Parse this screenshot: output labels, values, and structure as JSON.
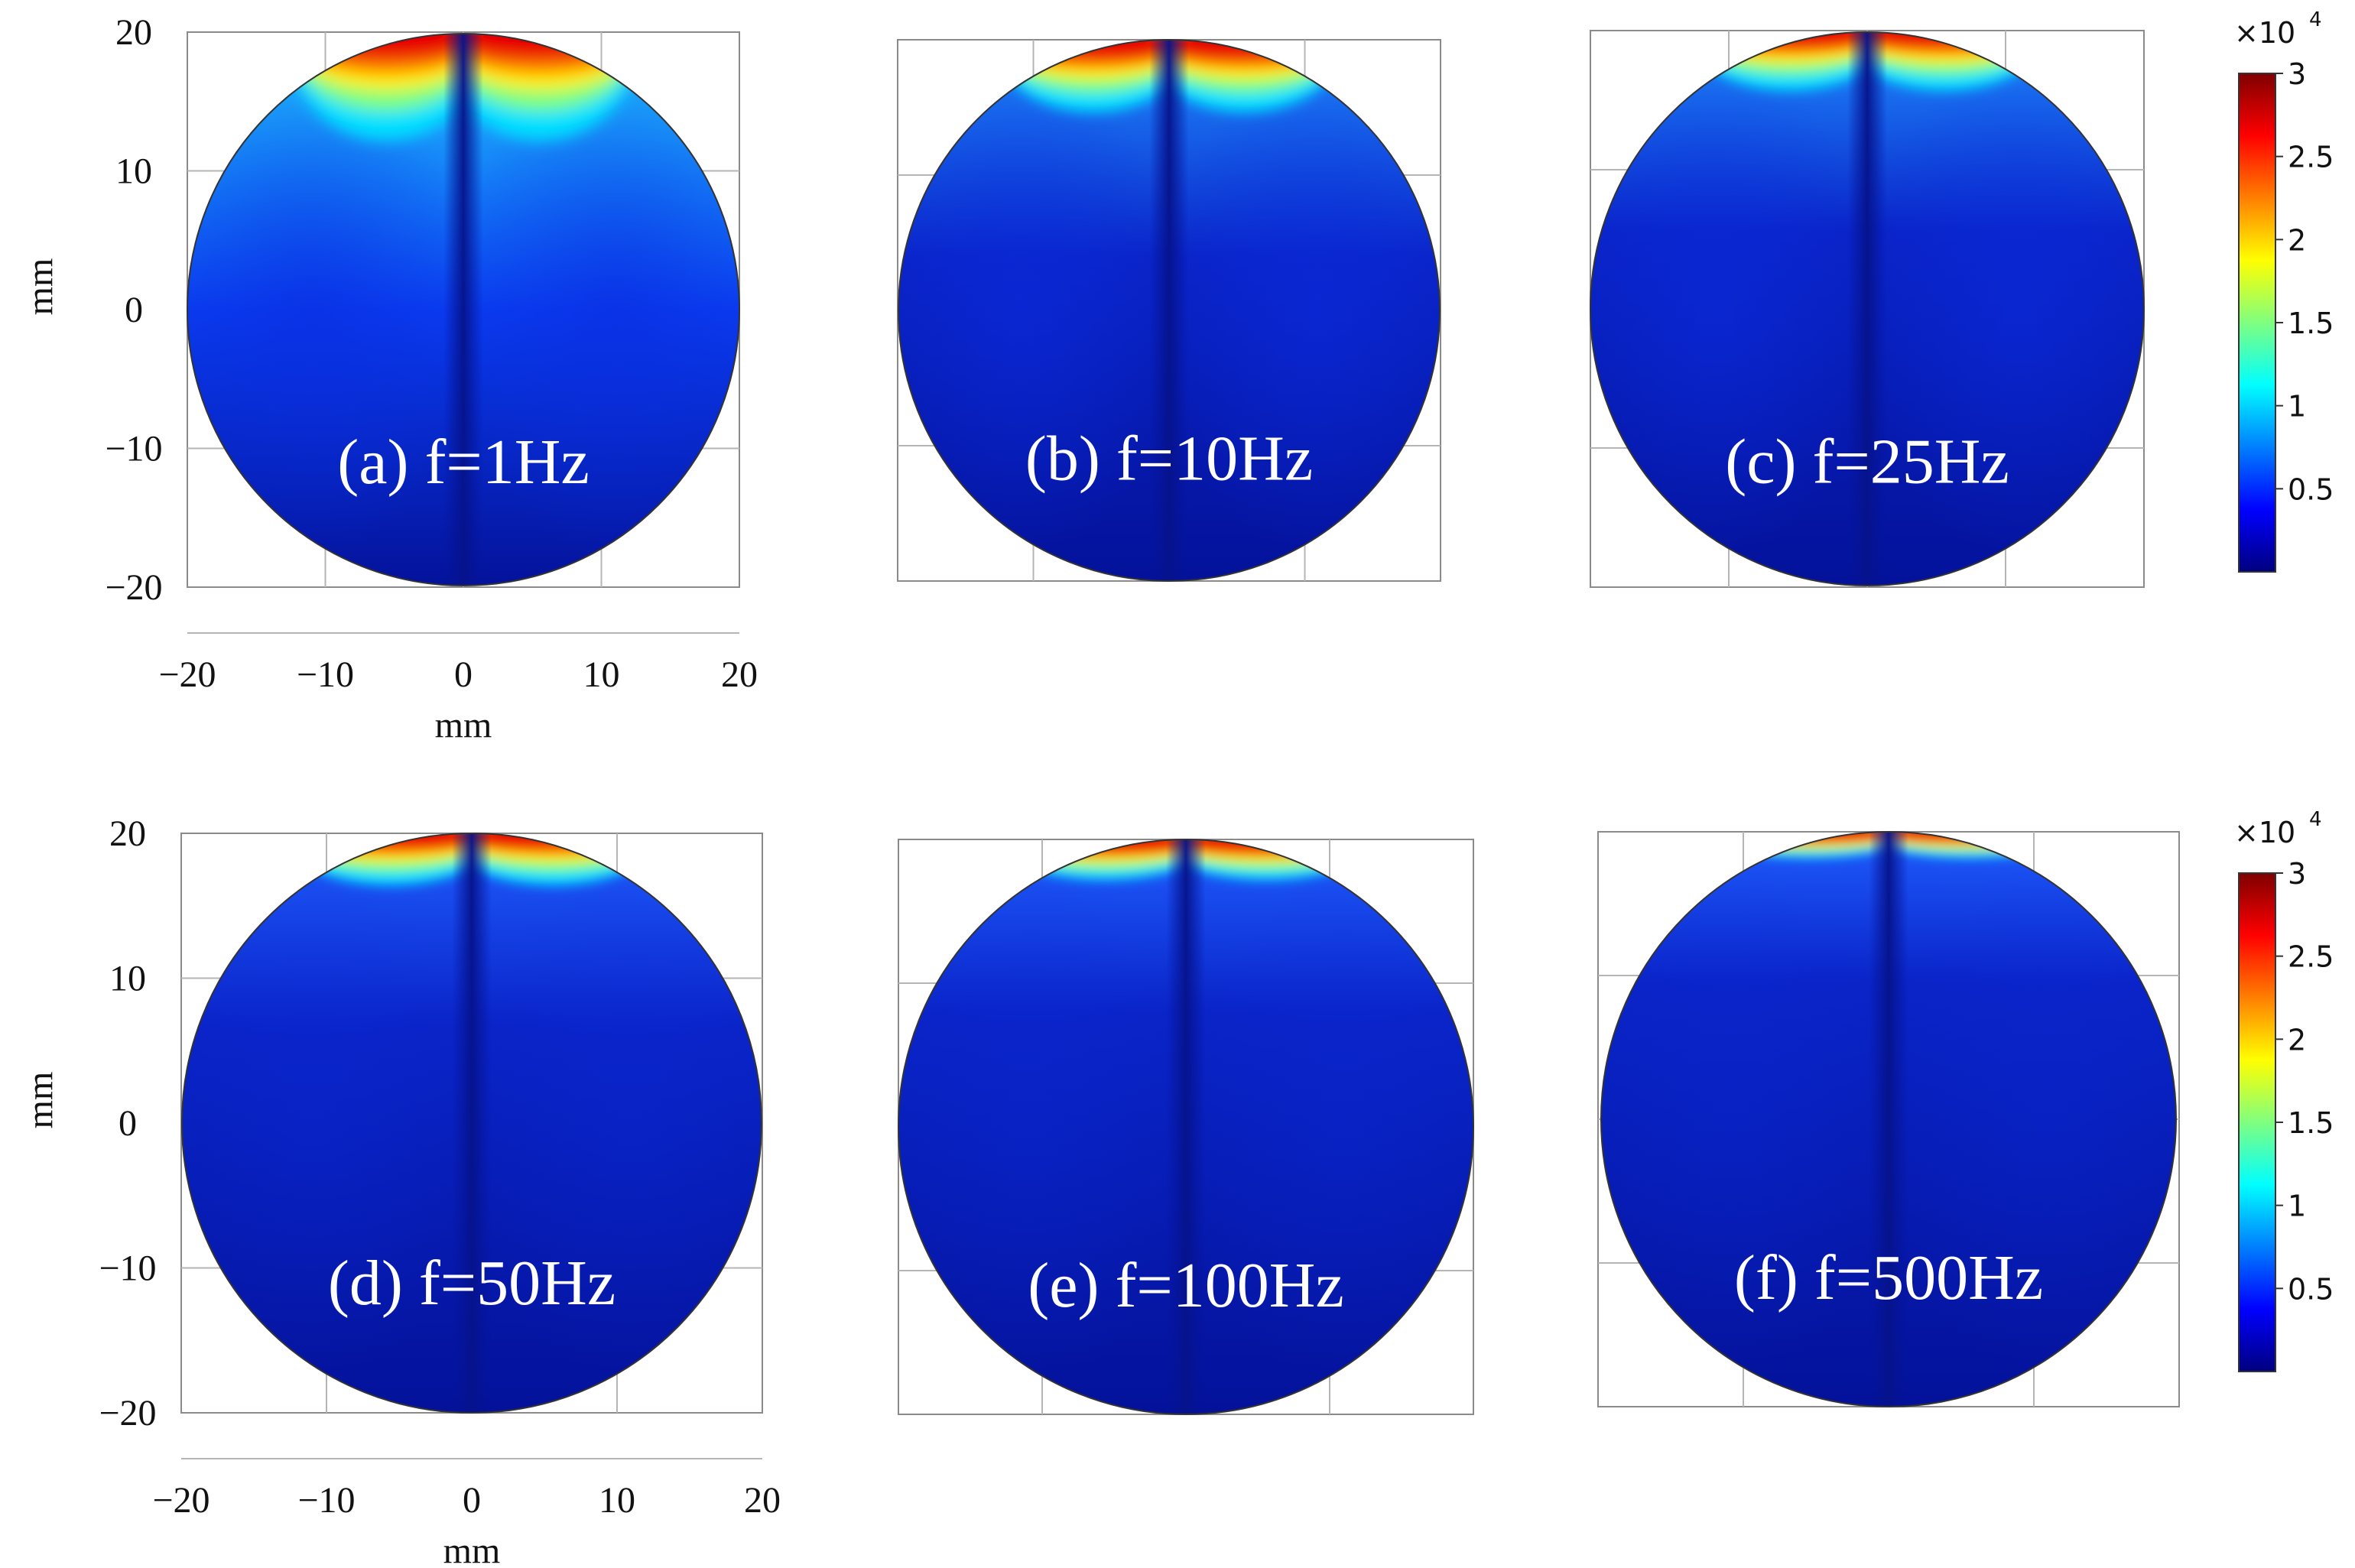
{
  "chart_data": {
    "type": "heatmap",
    "units": {
      "x": "mm",
      "y": "mm"
    },
    "xlim": [
      -20,
      20
    ],
    "ylim": [
      -20,
      20
    ],
    "x_ticks": [
      "−20",
      "−10",
      "0",
      "10",
      "20"
    ],
    "y_ticks": [
      "20",
      "10",
      "0",
      "−10",
      "−20"
    ],
    "xlabel": "mm",
    "ylabel": "mm",
    "colormap": "jet",
    "colorbar": {
      "multiplier": "×10",
      "exponent": "4",
      "min": 0,
      "max": 3,
      "ticks": [
        "3",
        "2.5",
        "2",
        "1.5",
        "1",
        "0.5"
      ],
      "tick_values": [
        3,
        2.5,
        2,
        1.5,
        1,
        0.5
      ],
      "colors": [
        "#00007f",
        "#0000ff",
        "#007fff",
        "#00ffff",
        "#7fff7f",
        "#ffff00",
        "#ff7f00",
        "#ff0000",
        "#7f0000"
      ]
    },
    "panels": [
      {
        "label": "(a) f=1Hz",
        "frequency_hz": 1
      },
      {
        "label": "(b) f=10Hz",
        "frequency_hz": 10
      },
      {
        "label": "(c) f=25Hz",
        "frequency_hz": 25
      },
      {
        "label": "(d) f=50Hz",
        "frequency_hz": 50
      },
      {
        "label": "(e) f=100Hz",
        "frequency_hz": 100
      },
      {
        "label": "(f) f=500Hz",
        "frequency_hz": 500
      }
    ]
  }
}
